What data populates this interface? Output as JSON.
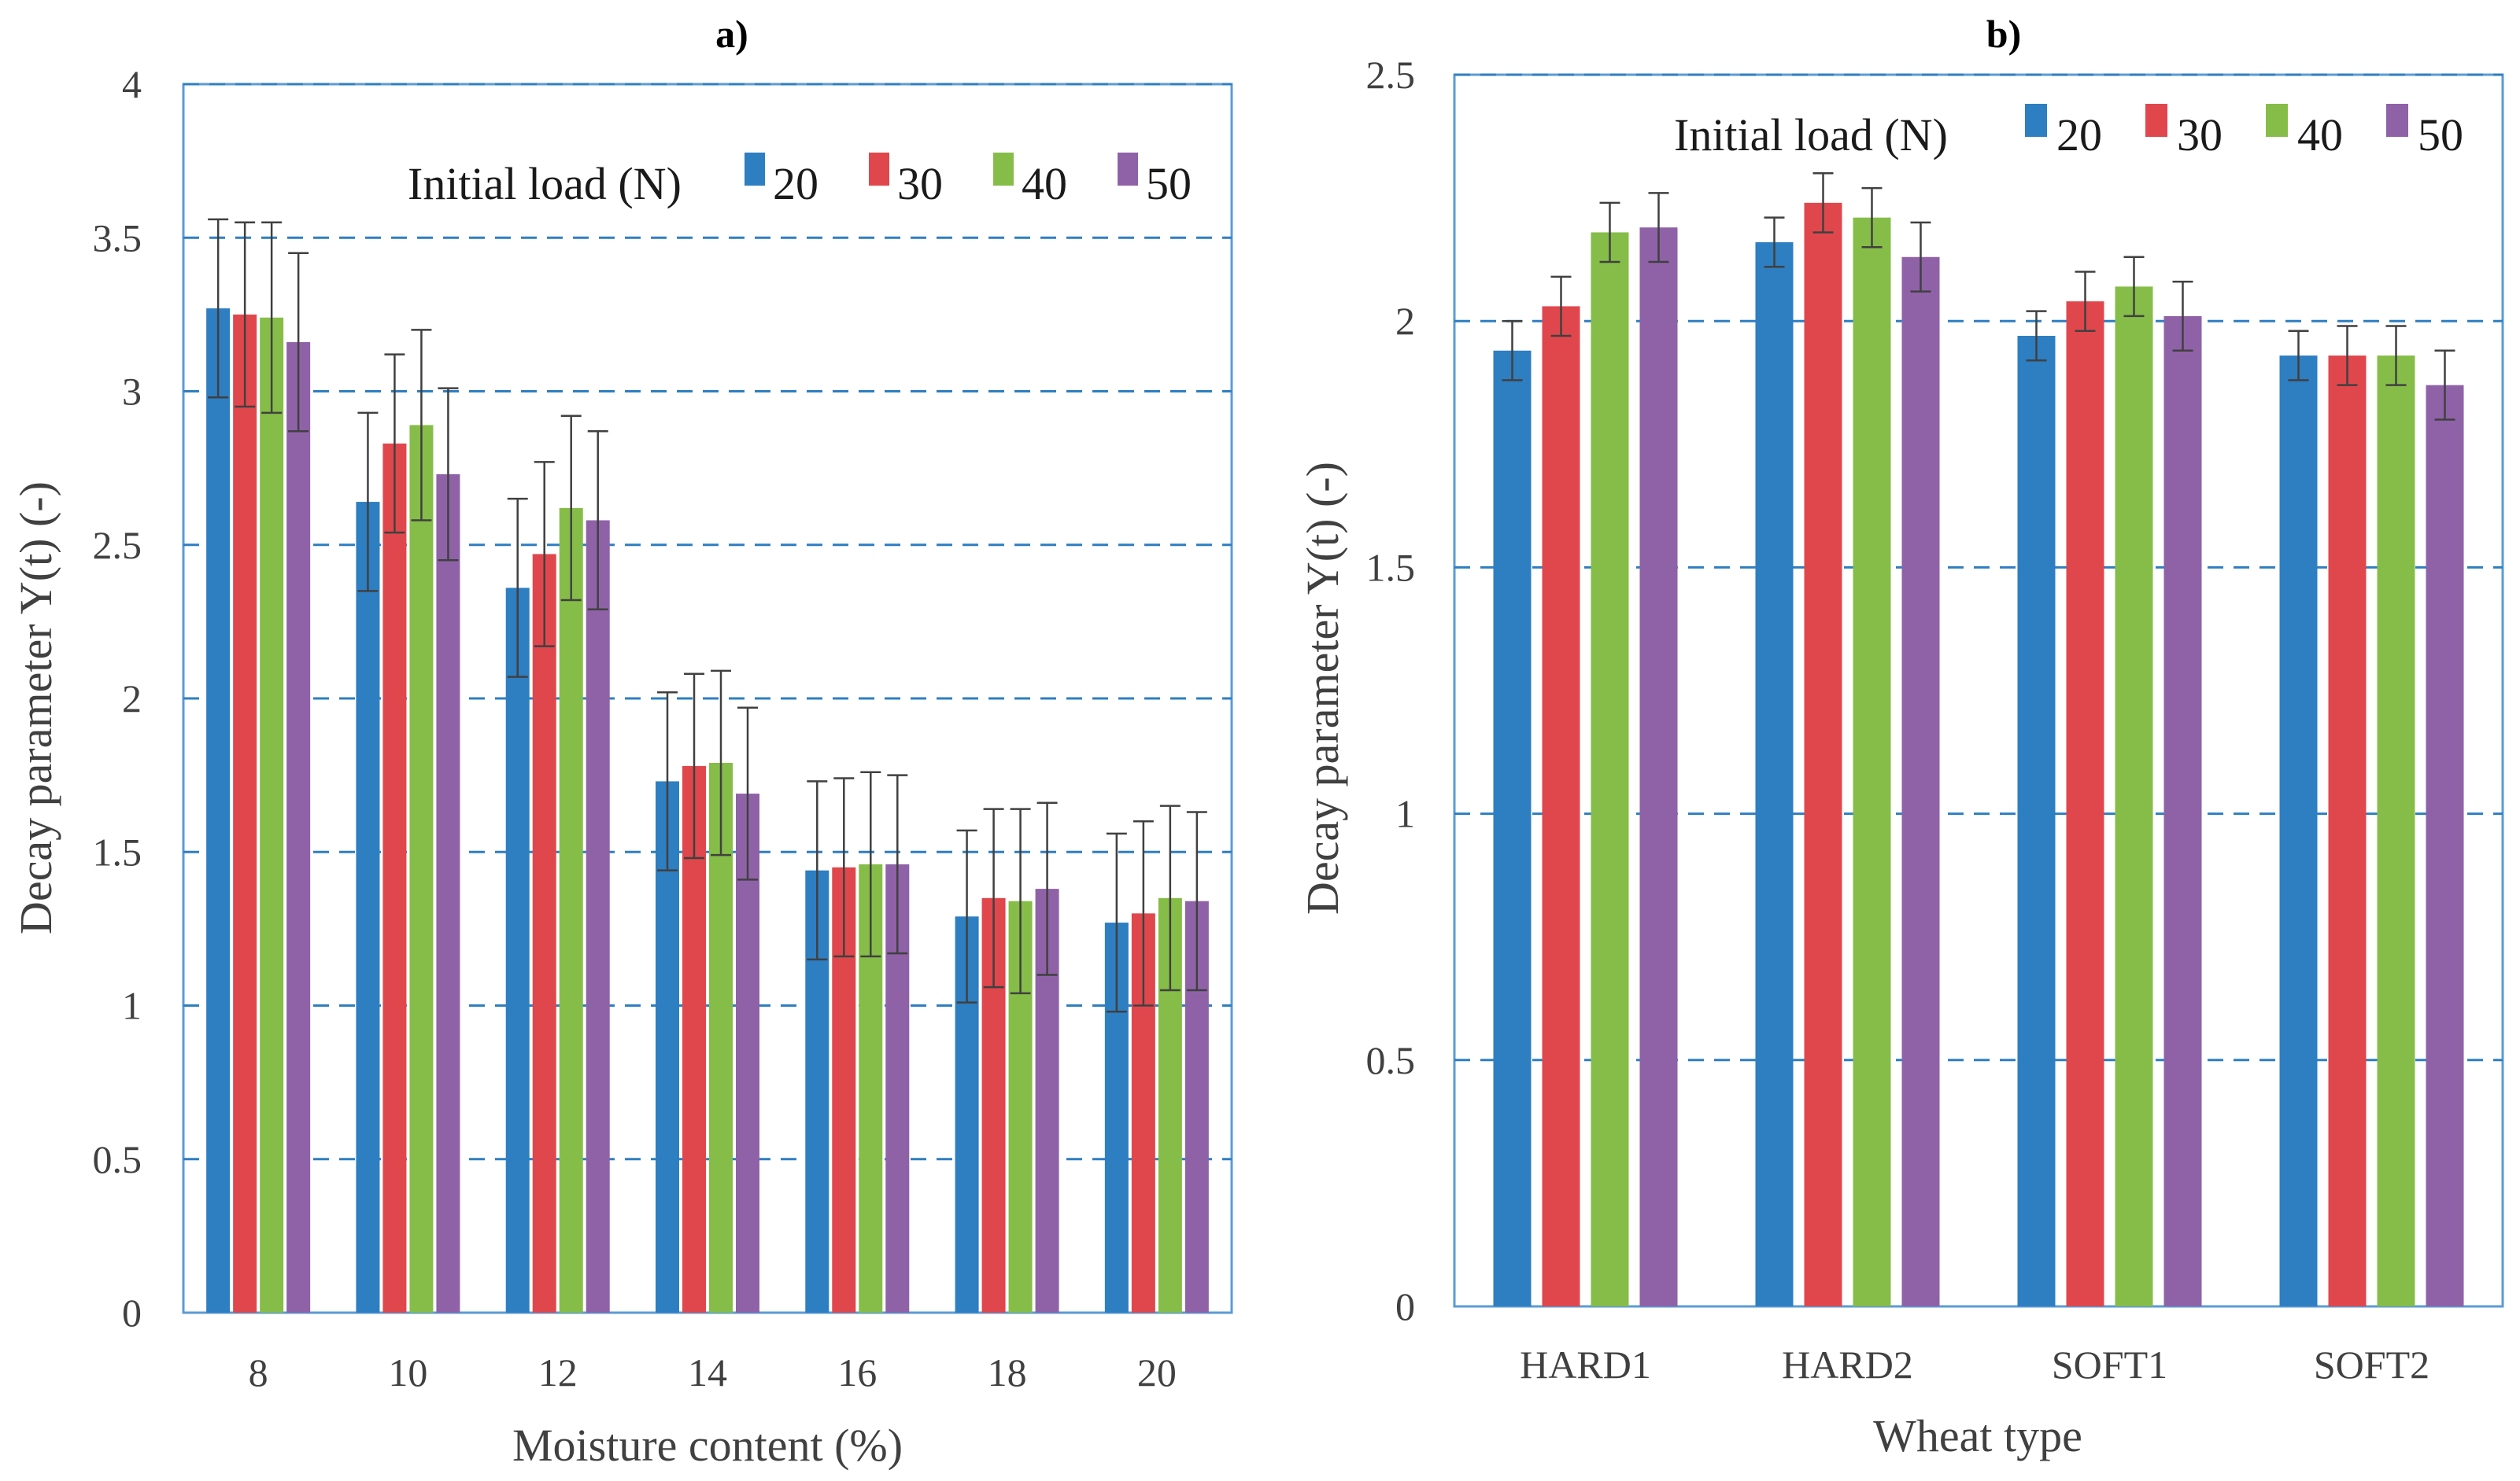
{
  "chart_data": [
    {
      "type": "bar",
      "title": "a)",
      "xlabel": "Moisture content (%)",
      "ylabel": "Decay parameter Y(t) (-)",
      "ylim": [
        0,
        4
      ],
      "yticks": [
        "0",
        "0.5",
        "1",
        "1.5",
        "2",
        "2.5",
        "3",
        "3.5",
        "4"
      ],
      "grid": "horizontal dashed",
      "legend_title": "Initial load (N)",
      "legend_position": "top-right",
      "categories": [
        "8",
        "10",
        "12",
        "14",
        "16",
        "18",
        "20"
      ],
      "series": [
        {
          "name": "20",
          "color": "#2E7EC2",
          "values": [
            3.27,
            2.64,
            2.36,
            1.73,
            1.44,
            1.29,
            1.27
          ],
          "errors": [
            0.29,
            0.29,
            0.29,
            0.29,
            0.29,
            0.28,
            0.29
          ]
        },
        {
          "name": "30",
          "color": "#E0474C",
          "values": [
            3.25,
            2.83,
            2.47,
            1.78,
            1.45,
            1.35,
            1.3
          ],
          "errors": [
            0.3,
            0.29,
            0.3,
            0.3,
            0.29,
            0.29,
            0.3
          ]
        },
        {
          "name": "40",
          "color": "#86BD48",
          "values": [
            3.24,
            2.89,
            2.62,
            1.79,
            1.46,
            1.34,
            1.35
          ],
          "errors": [
            0.31,
            0.31,
            0.3,
            0.3,
            0.3,
            0.3,
            0.3
          ]
        },
        {
          "name": "50",
          "color": "#8F62A8",
          "values": [
            3.16,
            2.73,
            2.58,
            1.69,
            1.46,
            1.38,
            1.34
          ],
          "errors": [
            0.29,
            0.28,
            0.29,
            0.28,
            0.29,
            0.28,
            0.29
          ]
        }
      ]
    },
    {
      "type": "bar",
      "title": "b)",
      "xlabel": "Wheat type",
      "ylabel": "Decay parameter Y(t) (-)",
      "ylim": [
        0,
        2.5
      ],
      "yticks": [
        "0",
        "0.5",
        "1",
        "1.5",
        "2",
        "2.5"
      ],
      "grid": "horizontal dashed",
      "legend_title": "Initial load (N)",
      "legend_position": "top-right",
      "categories": [
        "HARD1",
        "HARD2",
        "SOFT1",
        "SOFT2"
      ],
      "series": [
        {
          "name": "20",
          "color": "#2E7EC2",
          "values": [
            1.94,
            2.16,
            1.97,
            1.93
          ],
          "errors": [
            0.06,
            0.05,
            0.05,
            0.05
          ]
        },
        {
          "name": "30",
          "color": "#E0474C",
          "values": [
            2.03,
            2.24,
            2.04,
            1.93
          ],
          "errors": [
            0.06,
            0.06,
            0.06,
            0.06
          ]
        },
        {
          "name": "40",
          "color": "#86BD48",
          "values": [
            2.18,
            2.21,
            2.07,
            1.93
          ],
          "errors": [
            0.06,
            0.06,
            0.06,
            0.06
          ]
        },
        {
          "name": "50",
          "color": "#8F62A8",
          "values": [
            2.19,
            2.13,
            2.01,
            1.87
          ],
          "errors": [
            0.07,
            0.07,
            0.07,
            0.07
          ]
        }
      ]
    }
  ]
}
